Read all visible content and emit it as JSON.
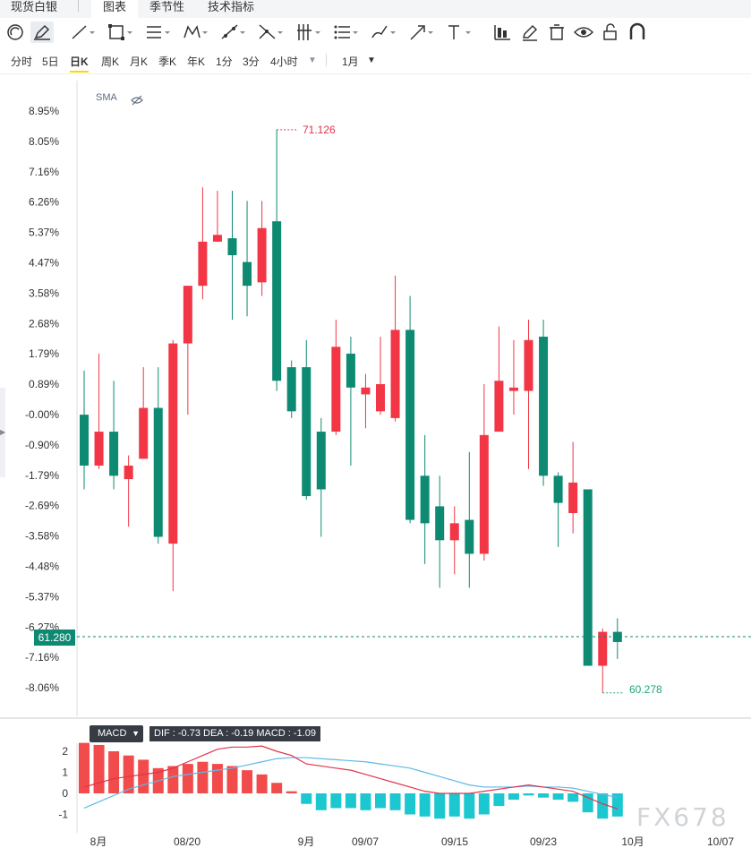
{
  "tabs": [
    {
      "label": "现货白银"
    },
    {
      "label": "图表",
      "active": true
    },
    {
      "label": "季节性"
    },
    {
      "label": "技术指标"
    }
  ],
  "toolbar_icons": [
    "target-icon",
    "pen-icon",
    "line-icon",
    "rectangle-icon",
    "parallel-lines-icon",
    "pattern-icon",
    "measure-icon",
    "fork-icon",
    "fibonacci-icon",
    "channel-icon",
    "brush-icon",
    "arrow-icon",
    "text-icon",
    "bar-chart-icon",
    "edit-icon",
    "trash-icon",
    "eye-icon",
    "lock-icon",
    "magnet-icon"
  ],
  "periods": {
    "items": [
      "分时",
      "5日",
      "日K",
      "周K",
      "月K",
      "季K",
      "年K",
      "1分",
      "3分",
      "4小时"
    ],
    "active": "日K",
    "range": "1月"
  },
  "indicator": {
    "sma_label": "SMA"
  },
  "price": {
    "current": "61.280",
    "high_label": "71.126",
    "low_label": "60.278",
    "up_color": "#f23645",
    "down_color": "#0e8a72"
  },
  "macd": {
    "tag": "MACD",
    "info": "DIF : -0.73  DEA : -0.19  MACD : -1.09"
  },
  "watermark": "FX678",
  "chart_data": {
    "type": "candlestick",
    "y_axis_unit": "%",
    "y_ticks": [
      "8.95%",
      "8.05%",
      "7.16%",
      "6.26%",
      "5.37%",
      "4.47%",
      "3.58%",
      "2.68%",
      "1.79%",
      "0.89%",
      "-0.00%",
      "-0.90%",
      "-1.79%",
      "-2.69%",
      "-3.58%",
      "-4.48%",
      "-5.37%",
      "-6.27%",
      "-7.16%",
      "-8.06%"
    ],
    "x_labels": [
      "8月",
      "08/20",
      "9月",
      "09/07",
      "09/15",
      "09/23",
      "10月",
      "10/07"
    ],
    "candles": [
      {
        "open": -0.0,
        "close": -1.5,
        "high": 1.3,
        "low": -2.2
      },
      {
        "open": -1.5,
        "close": -0.5,
        "high": 1.8,
        "low": -1.6
      },
      {
        "open": -0.5,
        "close": -1.8,
        "high": 1.0,
        "low": -2.2
      },
      {
        "open": -1.9,
        "close": -1.5,
        "high": -1.2,
        "low": -3.3
      },
      {
        "open": -1.3,
        "close": 0.2,
        "high": 1.4,
        "low": -1.3
      },
      {
        "open": 0.2,
        "close": -3.6,
        "high": 1.4,
        "low": -3.8
      },
      {
        "open": -3.8,
        "close": 2.1,
        "high": 2.2,
        "low": -5.2
      },
      {
        "open": 2.1,
        "close": 3.8,
        "high": 3.8,
        "low": 0.0
      },
      {
        "open": 3.8,
        "close": 5.1,
        "high": 6.7,
        "low": 3.4
      },
      {
        "open": 5.1,
        "close": 5.3,
        "high": 6.6,
        "low": 5.1
      },
      {
        "open": 5.2,
        "close": 4.7,
        "high": 6.6,
        "low": 2.8
      },
      {
        "open": 4.5,
        "close": 3.8,
        "high": 6.3,
        "low": 2.9
      },
      {
        "open": 3.9,
        "close": 5.5,
        "high": 6.3,
        "low": 3.5
      },
      {
        "open": 5.7,
        "close": 1.0,
        "high": 8.4,
        "low": 0.7
      },
      {
        "open": 1.4,
        "close": 0.1,
        "high": 1.6,
        "low": -0.1
      },
      {
        "open": 1.4,
        "close": -2.4,
        "high": 2.2,
        "low": -2.5
      },
      {
        "open": -0.5,
        "close": -2.2,
        "high": -0.1,
        "low": -3.6
      },
      {
        "open": -0.5,
        "close": 2.0,
        "high": 2.8,
        "low": -0.6
      },
      {
        "open": 1.8,
        "close": 0.8,
        "high": 2.3,
        "low": -1.5
      },
      {
        "open": 0.6,
        "close": 0.8,
        "high": 1.2,
        "low": -0.4
      },
      {
        "open": 0.1,
        "close": 0.9,
        "high": 2.3,
        "low": -0.0
      },
      {
        "open": -0.1,
        "close": 2.5,
        "high": 4.1,
        "low": -0.2
      },
      {
        "open": 2.5,
        "close": -3.1,
        "high": 3.5,
        "low": -3.2
      },
      {
        "open": -1.8,
        "close": -3.2,
        "high": -0.6,
        "low": -4.4
      },
      {
        "open": -2.7,
        "close": -3.7,
        "high": -1.8,
        "low": -5.1
      },
      {
        "open": -3.7,
        "close": -3.2,
        "high": -2.7,
        "low": -4.7
      },
      {
        "open": -3.1,
        "close": -4.1,
        "high": -1.1,
        "low": -5.1
      },
      {
        "open": -4.1,
        "close": -0.6,
        "high": 0.9,
        "low": -4.3
      },
      {
        "open": -0.5,
        "close": 1.0,
        "high": 2.6,
        "low": -0.5
      },
      {
        "open": 0.7,
        "close": 0.8,
        "high": 2.2,
        "low": -0.0
      },
      {
        "open": 0.7,
        "close": 2.2,
        "high": 2.8,
        "low": -1.6
      },
      {
        "open": 2.3,
        "close": -1.8,
        "high": 2.8,
        "low": -2.1
      },
      {
        "open": -1.8,
        "close": -2.6,
        "high": -1.7,
        "low": -3.9
      },
      {
        "open": -2.9,
        "close": -2.0,
        "high": -0.8,
        "low": -3.5
      },
      {
        "open": -2.2,
        "close": -7.4,
        "high": -2.2,
        "low": -7.4
      },
      {
        "open": -7.4,
        "close": -6.4,
        "high": -6.3,
        "low": -8.2
      },
      {
        "open": -6.4,
        "close": -6.7,
        "high": -6.0,
        "low": -7.2
      }
    ],
    "macd": {
      "y_ticks": [
        "2",
        "1",
        "0",
        "-1"
      ],
      "histogram": [
        2.4,
        2.3,
        2.0,
        1.8,
        1.6,
        1.2,
        1.3,
        1.4,
        1.5,
        1.4,
        1.3,
        1.1,
        0.9,
        0.5,
        0.1,
        -0.5,
        -0.8,
        -0.7,
        -0.7,
        -0.8,
        -0.7,
        -0.8,
        -1.0,
        -1.1,
        -1.2,
        -1.1,
        -1.2,
        -1.0,
        -0.6,
        -0.3,
        -0.1,
        -0.2,
        -0.3,
        -0.4,
        -0.9,
        -1.2,
        -1.1
      ],
      "dif": [
        0.3,
        0.5,
        0.7,
        0.8,
        0.9,
        1.0,
        1.2,
        1.5,
        1.8,
        2.1,
        2.2,
        2.2,
        2.25,
        2.0,
        1.8,
        1.4,
        1.3,
        1.2,
        1.1,
        0.9,
        0.7,
        0.5,
        0.3,
        0.1,
        0.0,
        0.0,
        0.0,
        0.1,
        0.2,
        0.3,
        0.4,
        0.3,
        0.2,
        0.1,
        -0.2,
        -0.5,
        -0.73
      ],
      "dea": [
        -0.7,
        -0.4,
        -0.1,
        0.2,
        0.4,
        0.6,
        0.8,
        0.9,
        1.0,
        1.1,
        1.2,
        1.35,
        1.5,
        1.65,
        1.7,
        1.7,
        1.65,
        1.6,
        1.55,
        1.5,
        1.4,
        1.3,
        1.2,
        1.0,
        0.8,
        0.6,
        0.4,
        0.3,
        0.3,
        0.3,
        0.35,
        0.3,
        0.3,
        0.25,
        0.1,
        -0.05,
        -0.19
      ]
    }
  }
}
